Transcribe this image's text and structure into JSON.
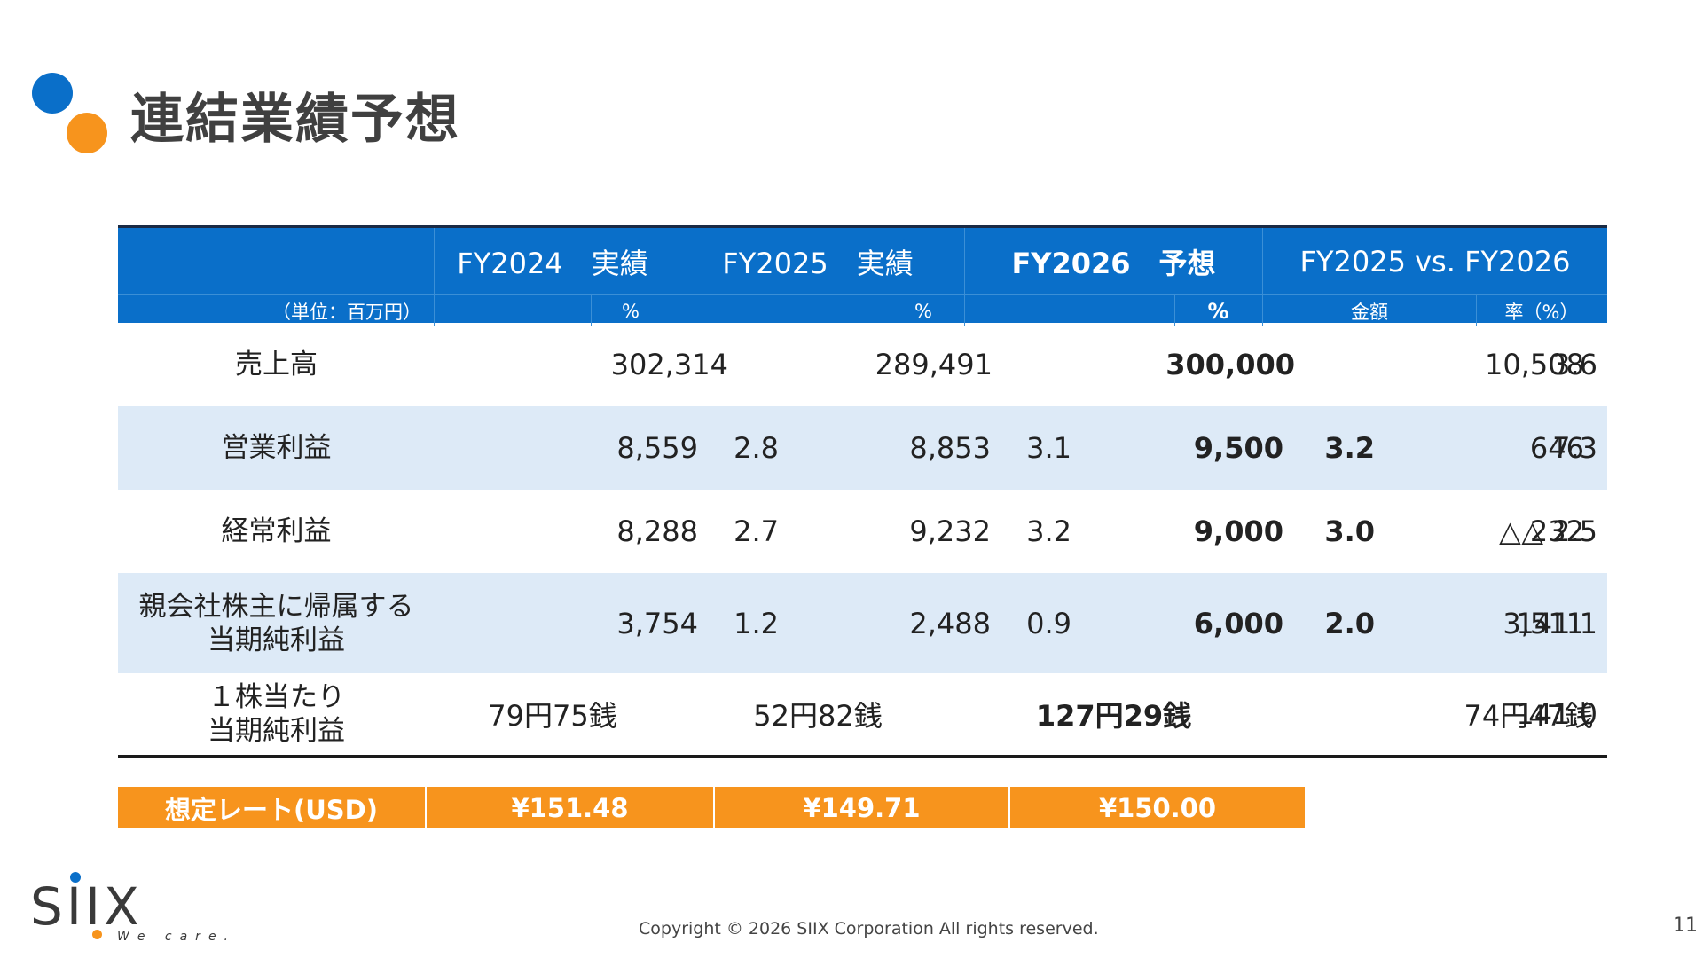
{
  "title": "連結業績予想",
  "colors": {
    "header_blue": "#0a6fc9",
    "accent_orange": "#f7941d",
    "row_shade": "#ddeaf7"
  },
  "header": {
    "fy2024": "FY2024　実績",
    "fy2025": "FY2025　実績",
    "fy2026": "FY2026　予想",
    "comparison": "FY2025 vs. FY2026",
    "unit": "（単位：百万円）",
    "pct_fy2024": "%",
    "pct_fy2025": "%",
    "pct_fy2026": "%",
    "amount": "金額",
    "rate": "率（%）"
  },
  "rows": [
    {
      "label": "売上高",
      "fy2024": "302,314",
      "fy2024_pct": "",
      "fy2025": "289,491",
      "fy2025_pct": "",
      "fy2026": "300,000",
      "fy2026_pct": "",
      "diff_amount": "10,508",
      "diff_rate": "3.6"
    },
    {
      "label": "営業利益",
      "fy2024": "8,559",
      "fy2024_pct": "2.8",
      "fy2025": "8,853",
      "fy2025_pct": "3.1",
      "fy2026": "9,500",
      "fy2026_pct": "3.2",
      "diff_amount": "646",
      "diff_rate": "7.3"
    },
    {
      "label": "経常利益",
      "fy2024": "8,288",
      "fy2024_pct": "2.7",
      "fy2025": "9,232",
      "fy2025_pct": "3.2",
      "fy2026": "9,000",
      "fy2026_pct": "3.0",
      "diff_amount": "△ 232",
      "diff_rate": "△ 2.5"
    },
    {
      "label": "親会社株主に帰属する\n当期純利益",
      "fy2024": "3,754",
      "fy2024_pct": "1.2",
      "fy2025": "2,488",
      "fy2025_pct": "0.9",
      "fy2026": "6,000",
      "fy2026_pct": "2.0",
      "diff_amount": "3,511",
      "diff_rate": "141.1"
    },
    {
      "label": "１株当たり\n当期純利益",
      "fy2024": "79円75銭",
      "fy2025": "52円82銭",
      "fy2026": "127円29銭",
      "diff_amount": "74円47銭",
      "diff_rate": "141.0"
    }
  ],
  "rate_row": {
    "label": "想定レート(USD)",
    "fy2024": "¥151.48",
    "fy2025": "¥149.71",
    "fy2026": "¥150.00"
  },
  "footer": {
    "logo": "SIIX",
    "tagline": "We care.",
    "copyright": "Copyright © 2026 SIIX Corporation All rights reserved.",
    "page": "11"
  }
}
